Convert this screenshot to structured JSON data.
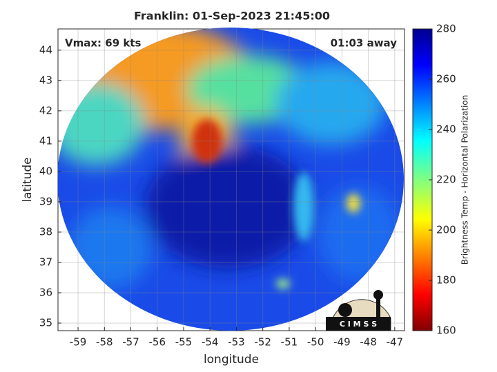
{
  "chart_data": {
    "type": "image",
    "title": "Franklin: 01-Sep-2023 21:45:00",
    "annotations": [
      "Vmax: 69 kts",
      "01:03 away"
    ],
    "xlabel": "longitude",
    "ylabel": "latitude",
    "xlim": [
      -59.76,
      -46.63
    ],
    "ylim": [
      34.75,
      44.7
    ],
    "xticks": [
      -59,
      -58,
      -57,
      -56,
      -55,
      -54,
      -53,
      -52,
      -51,
      -50,
      -49,
      -48,
      -47
    ],
    "yticks": [
      35,
      36,
      37,
      38,
      39,
      40,
      41,
      42,
      43,
      44
    ],
    "grid": true,
    "colorbar": {
      "label": "Brightness Temp - Horizontal Polarization",
      "clim": [
        160,
        280
      ],
      "ticks": [
        160,
        180,
        200,
        220,
        240,
        260,
        280
      ]
    },
    "logo_text": "C I M S S"
  }
}
